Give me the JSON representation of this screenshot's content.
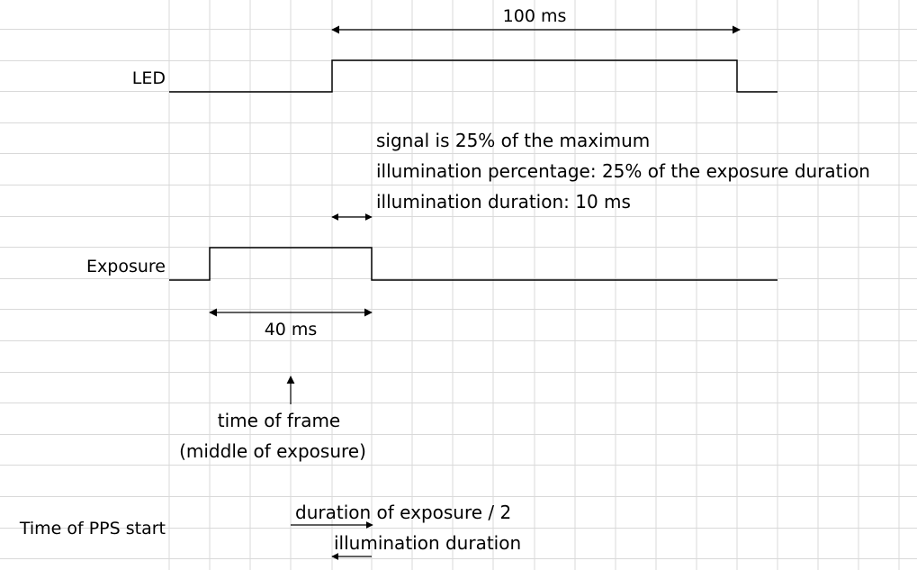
{
  "rows": {
    "led": "LED",
    "exposure": "Exposure",
    "pps": "Time of PPS start"
  },
  "dimensions": {
    "led_duration": "100 ms",
    "exposure_duration": "40 ms"
  },
  "notes": {
    "signal": "signal is 25% of the maximum",
    "illum_pct": "illumination percentage: 25% of the exposure duration",
    "illum_dur": "illumination duration: 10 ms"
  },
  "frame_marker": {
    "line1": "time of frame",
    "line2": "(middle of exposure)"
  },
  "pps_labels": {
    "half_exposure": "duration of exposure / 2",
    "illumination": "illumination duration"
  }
}
